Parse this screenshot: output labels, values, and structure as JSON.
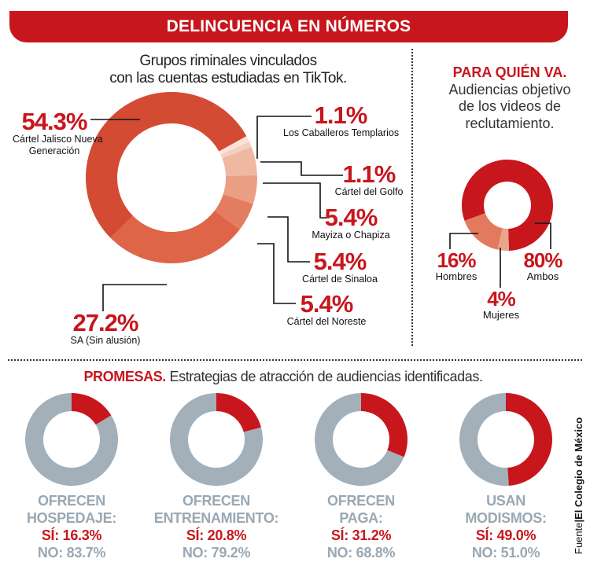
{
  "header": {
    "title": "DELINCUENCIA EN NÚMEROS"
  },
  "colors": {
    "accent": "#c8161d",
    "gray": "#a3b0ba"
  },
  "chart_data": [
    {
      "type": "pie",
      "style": "donut",
      "title_lines": [
        "Grupos riminales vinculados",
        "con las cuentas estudiadas en TikTok."
      ],
      "slices": [
        {
          "label": "Los Caballeros Templarios",
          "value": 1.1,
          "value_label": "1.1%",
          "color": "#fae4d9"
        },
        {
          "label": "Cártel del Golfo",
          "value": 1.1,
          "value_label": "1.1%",
          "color": "#f4d0c0"
        },
        {
          "label": "Mayiza o Chapiza",
          "value": 5.4,
          "value_label": "5.4%",
          "color": "#efb9a1"
        },
        {
          "label": "Cártel de Sinaloa",
          "value": 5.4,
          "value_label": "5.4%",
          "color": "#eb9f83"
        },
        {
          "label": "Cártel del Noreste",
          "value": 5.4,
          "value_label": "5.4%",
          "color": "#e47c5f"
        },
        {
          "label": "SA (Sin alusión)",
          "value": 27.2,
          "value_label": "27.2%",
          "color": "#df6549"
        },
        {
          "label": "Cártel Jalisco Nueva Generación",
          "label_lines": [
            "Cártel Jalisco Nueva",
            "Generación"
          ],
          "value": 54.3,
          "value_label": "54.3%",
          "color": "#d44b34"
        }
      ]
    },
    {
      "type": "pie",
      "style": "donut",
      "title": "PARA QUIÉN VA.",
      "subtitle_lines": [
        "Audiencias objetivo",
        "de los videos de",
        "reclutamiento."
      ],
      "slices": [
        {
          "label": "Ambos",
          "value": 80,
          "value_label": "80%",
          "color": "#c8161d"
        },
        {
          "label": "Mujeres",
          "value": 4,
          "value_label": "4%",
          "color": "#eaa58c"
        },
        {
          "label": "Hombres",
          "value": 16,
          "value_label": "16%",
          "color": "#e17a5e"
        }
      ]
    },
    {
      "type": "pie",
      "style": "donut-set",
      "title": "PROMESAS.",
      "subtitle": "Estrategias de atracción de audiencias identificadas.",
      "items": [
        {
          "line1": "OFRECEN",
          "line2": "HOSPEDAJE:",
          "yes": 16.3,
          "no": 83.7,
          "yes_label": "SÍ: 16.3%",
          "no_label": "NO: 83.7%"
        },
        {
          "line1": "OFRECEN",
          "line2": "ENTRENAMIENTO:",
          "yes": 20.8,
          "no": 79.2,
          "yes_label": "SÍ: 20.8%",
          "no_label": "NO: 79.2%"
        },
        {
          "line1": "OFRECEN",
          "line2": "PAGA:",
          "yes": 31.2,
          "no": 68.8,
          "yes_label": "SÍ: 31.2%",
          "no_label": "NO: 68.8%"
        },
        {
          "line1": "USAN",
          "line2": "MODISMOS:",
          "yes": 49.0,
          "no": 51.0,
          "yes_label": "SÍ: 49.0%",
          "no_label": "NO: 51.0%"
        }
      ]
    }
  ],
  "source": {
    "prefix": "Fuente",
    "name": "El Colegio de México"
  }
}
